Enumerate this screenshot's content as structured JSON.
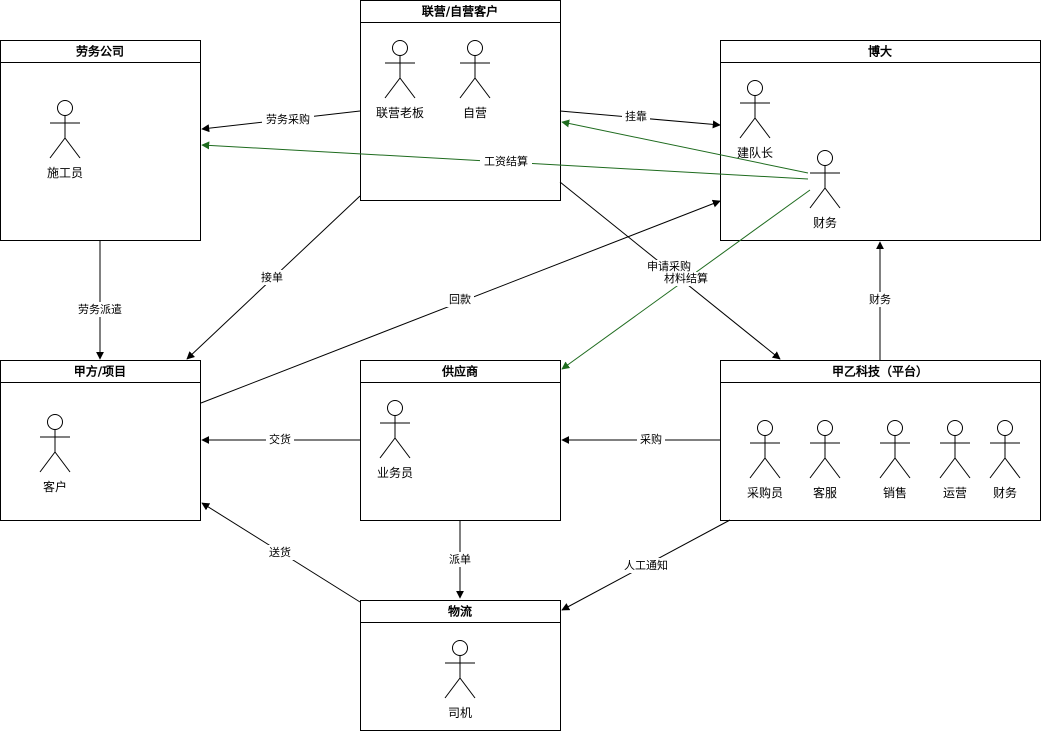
{
  "colors": {
    "black": "#000000",
    "green": "#1e6b1e"
  },
  "pools": {
    "labor": {
      "title": "劳务公司",
      "actors": [
        "施工员"
      ]
    },
    "joint": {
      "title": "联营/自营客户",
      "actors": [
        "联营老板",
        "自营"
      ]
    },
    "boda": {
      "title": "博大",
      "actors": [
        "建队长",
        "财务"
      ]
    },
    "client": {
      "title": "甲方/项目",
      "actors": [
        "客户"
      ]
    },
    "supplier": {
      "title": "供应商",
      "actors": [
        "业务员"
      ]
    },
    "platform": {
      "title": "甲乙科技（平台）",
      "actors": [
        "采购员",
        "客服",
        "销售",
        "运营",
        "财务"
      ]
    },
    "logistics": {
      "title": "物流",
      "actors": [
        "司机"
      ]
    }
  },
  "edges": [
    {
      "label": "劳务采购",
      "color": "black"
    },
    {
      "label": "挂靠",
      "color": "black"
    },
    {
      "label": "工资结算",
      "color": "green"
    },
    {
      "label": "",
      "color": "green"
    },
    {
      "label": "劳务派遣",
      "color": "black"
    },
    {
      "label": "接单",
      "color": "black"
    },
    {
      "label": "回款",
      "color": "black"
    },
    {
      "label": "申请采购",
      "color": "black"
    },
    {
      "label": "材料结算",
      "color": "green"
    },
    {
      "label": "财务",
      "color": "black"
    },
    {
      "label": "交货",
      "color": "black"
    },
    {
      "label": "采购",
      "color": "black"
    },
    {
      "label": "派单",
      "color": "black"
    },
    {
      "label": "人工通知",
      "color": "black"
    },
    {
      "label": "送货",
      "color": "black"
    }
  ]
}
